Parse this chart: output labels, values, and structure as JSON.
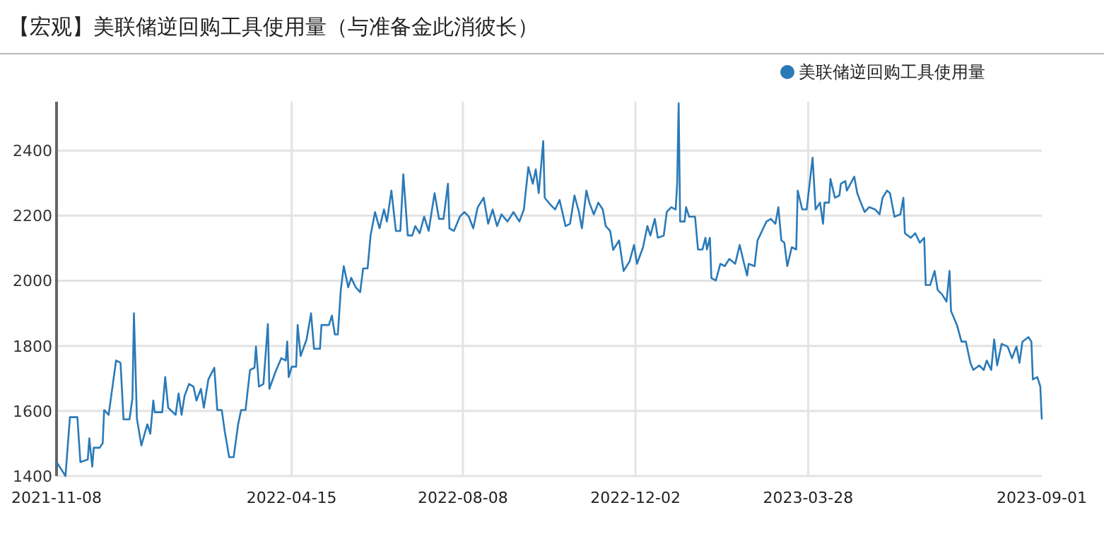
{
  "chart_data": {
    "type": "line",
    "title": "【宏观】美联储逆回购工具使用量（与准备金此消彼长）",
    "xlim": [
      "2021-11-08",
      "2023-09-01"
    ],
    "xticks": [
      "2021-11-08",
      "2022-04-15",
      "2022-08-08",
      "2022-12-02",
      "2023-03-28",
      "2023-09-01"
    ],
    "ylim": [
      1400,
      2550
    ],
    "yticks": [
      1400,
      1600,
      1800,
      2000,
      2200,
      2400
    ],
    "grid": true,
    "legend": "top right",
    "marker": "none",
    "line_style": "solid",
    "series": [
      {
        "name": "美联储逆回购工具使用量",
        "color": "#2a7ab8",
        "x": [
          "2021-11-08",
          "2021-11-11",
          "2021-11-14",
          "2021-11-17",
          "2021-11-22",
          "2021-11-24",
          "2021-11-29",
          "2021-11-30",
          "2021-12-02",
          "2021-12-03",
          "2021-12-07",
          "2021-12-09",
          "2021-12-10",
          "2021-12-13",
          "2021-12-18",
          "2021-12-21",
          "2021-12-23",
          "2021-12-27",
          "2021-12-29",
          "2021-12-30",
          "2022-01-01",
          "2022-01-04",
          "2022-01-08",
          "2022-01-10",
          "2022-01-12",
          "2022-01-13",
          "2022-01-18",
          "2022-01-20",
          "2022-01-22",
          "2022-01-27",
          "2022-01-29",
          "2022-01-31",
          "2022-02-02",
          "2022-02-05",
          "2022-02-08",
          "2022-02-10",
          "2022-02-13",
          "2022-02-15",
          "2022-02-18",
          "2022-02-22",
          "2022-02-24",
          "2022-02-27",
          "2022-03-01",
          "2022-03-04",
          "2022-03-07",
          "2022-03-10",
          "2022-03-12",
          "2022-03-15",
          "2022-03-18",
          "2022-03-21",
          "2022-03-22",
          "2022-03-24",
          "2022-03-27",
          "2022-03-30",
          "2022-03-31",
          "2022-04-04",
          "2022-04-08",
          "2022-04-11",
          "2022-04-12",
          "2022-04-13",
          "2022-04-15",
          "2022-04-18",
          "2022-04-19",
          "2022-04-21",
          "2022-04-25",
          "2022-04-28",
          "2022-04-30",
          "2022-05-04",
          "2022-05-05",
          "2022-05-10",
          "2022-05-12",
          "2022-05-14",
          "2022-05-16",
          "2022-05-18",
          "2022-05-20",
          "2022-05-23",
          "2022-05-25",
          "2022-05-28",
          "2022-05-31",
          "2022-06-02",
          "2022-06-05",
          "2022-06-07",
          "2022-06-10",
          "2022-06-13",
          "2022-06-16",
          "2022-06-18",
          "2022-06-21",
          "2022-06-24",
          "2022-06-27",
          "2022-06-29",
          "2022-07-02",
          "2022-07-05",
          "2022-07-07",
          "2022-07-10",
          "2022-07-13",
          "2022-07-16",
          "2022-07-20",
          "2022-07-23",
          "2022-07-26",
          "2022-07-29",
          "2022-07-30",
          "2022-08-02",
          "2022-08-06",
          "2022-08-09",
          "2022-08-12",
          "2022-08-15",
          "2022-08-18",
          "2022-08-22",
          "2022-08-25",
          "2022-08-28",
          "2022-08-31",
          "2022-09-03",
          "2022-09-07",
          "2022-09-11",
          "2022-09-15",
          "2022-09-18",
          "2022-09-21",
          "2022-09-24",
          "2022-09-26",
          "2022-09-28",
          "2022-10-01",
          "2022-10-02",
          "2022-10-06",
          "2022-10-09",
          "2022-10-12",
          "2022-10-16",
          "2022-10-19",
          "2022-10-22",
          "2022-10-25",
          "2022-10-27",
          "2022-10-30",
          "2022-11-01",
          "2022-11-04",
          "2022-11-07",
          "2022-11-10",
          "2022-11-12",
          "2022-11-15",
          "2022-11-17",
          "2022-11-21",
          "2022-11-24",
          "2022-11-28",
          "2022-12-01",
          "2022-12-03",
          "2022-12-07",
          "2022-12-10",
          "2022-12-12",
          "2022-12-15",
          "2022-12-17",
          "2022-12-21",
          "2022-12-23",
          "2022-12-26",
          "2022-12-29",
          "2022-12-30",
          "2022-12-31",
          "2023-01-01",
          "2023-01-04",
          "2023-01-05",
          "2023-01-07",
          "2023-01-11",
          "2023-01-13",
          "2023-01-16",
          "2023-01-18",
          "2023-01-19",
          "2023-01-21",
          "2023-01-22",
          "2023-01-25",
          "2023-01-28",
          "2023-01-31",
          "2023-02-03",
          "2023-02-07",
          "2023-02-10",
          "2023-02-13",
          "2023-02-15",
          "2023-02-16",
          "2023-02-20",
          "2023-02-22",
          "2023-02-25",
          "2023-02-28",
          "2023-03-03",
          "2023-03-06",
          "2023-03-08",
          "2023-03-10",
          "2023-03-12",
          "2023-03-14",
          "2023-03-17",
          "2023-03-20",
          "2023-03-21",
          "2023-03-24",
          "2023-03-27",
          "2023-03-31",
          "2023-04-02",
          "2023-04-05",
          "2023-04-07",
          "2023-04-08",
          "2023-04-11",
          "2023-04-12",
          "2023-04-15",
          "2023-04-18",
          "2023-04-19",
          "2023-04-22",
          "2023-04-23",
          "2023-04-28",
          "2023-04-30",
          "2023-05-03",
          "2023-05-05",
          "2023-05-08",
          "2023-05-12",
          "2023-05-15",
          "2023-05-17",
          "2023-05-20",
          "2023-05-22",
          "2023-05-25",
          "2023-05-29",
          "2023-05-31",
          "2023-06-01",
          "2023-06-05",
          "2023-06-08",
          "2023-06-11",
          "2023-06-14",
          "2023-06-15",
          "2023-06-18",
          "2023-06-21",
          "2023-06-23",
          "2023-06-26",
          "2023-06-29",
          "2023-07-01",
          "2023-07-02",
          "2023-07-06",
          "2023-07-09",
          "2023-07-12",
          "2023-07-15",
          "2023-07-17",
          "2023-07-21",
          "2023-07-24",
          "2023-07-26",
          "2023-07-29",
          "2023-07-31",
          "2023-08-02",
          "2023-08-05",
          "2023-08-09",
          "2023-08-12",
          "2023-08-15",
          "2023-08-17",
          "2023-08-19",
          "2023-08-23",
          "2023-08-25",
          "2023-08-26",
          "2023-08-29",
          "2023-08-31",
          "2023-09-01"
        ],
        "values": [
          1443,
          1422,
          1400,
          1581,
          1581,
          1443,
          1451,
          1516,
          1429,
          1487,
          1487,
          1501,
          1603,
          1588,
          1755,
          1748,
          1574,
          1574,
          1639,
          1900,
          1577,
          1494,
          1559,
          1530,
          1632,
          1596,
          1596,
          1704,
          1610,
          1588,
          1654,
          1588,
          1646,
          1683,
          1675,
          1632,
          1668,
          1610,
          1697,
          1733,
          1603,
          1603,
          1538,
          1458,
          1458,
          1559,
          1603,
          1603,
          1726,
          1733,
          1798,
          1675,
          1683,
          1867,
          1668,
          1719,
          1762,
          1755,
          1813,
          1704,
          1736,
          1736,
          1864,
          1769,
          1820,
          1900,
          1791,
          1791,
          1864,
          1864,
          1893,
          1835,
          1835,
          1972,
          2045,
          1980,
          2009,
          1980,
          1965,
          2038,
          2038,
          2139,
          2211,
          2161,
          2219,
          2182,
          2277,
          2153,
          2153,
          2327,
          2139,
          2139,
          2168,
          2146,
          2197,
          2153,
          2269,
          2190,
          2190,
          2298,
          2161,
          2153,
          2197,
          2211,
          2197,
          2161,
          2226,
          2255,
          2175,
          2219,
          2168,
          2204,
          2182,
          2211,
          2182,
          2219,
          2349,
          2298,
          2342,
          2269,
          2429,
          2255,
          2233,
          2219,
          2248,
          2168,
          2175,
          2262,
          2211,
          2161,
          2277,
          2240,
          2204,
          2240,
          2219,
          2168,
          2153,
          2095,
          2124,
          2030,
          2059,
          2110,
          2052,
          2102,
          2168,
          2139,
          2190,
          2132,
          2139,
          2211,
          2226,
          2219,
          2298,
          2545,
          2182,
          2182,
          2226,
          2197,
          2197,
          2096,
          2096,
          2132,
          2096,
          2132,
          2008,
          2001,
          2052,
          2045,
          2067,
          2052,
          2110,
          2052,
          2016,
          2052,
          2045,
          2124,
          2153,
          2182,
          2190,
          2175,
          2226,
          2124,
          2117,
          2045,
          2103,
          2096,
          2277,
          2219,
          2219,
          2378,
          2219,
          2240,
          2175,
          2240,
          2240,
          2313,
          2255,
          2262,
          2298,
          2306,
          2277,
          2320,
          2269,
          2233,
          2211,
          2226,
          2219,
          2204,
          2255,
          2277,
          2269,
          2197,
          2204,
          2255,
          2146,
          2132,
          2146,
          2117,
          2132,
          1987,
          1987,
          2030,
          1972,
          1958,
          1936,
          2030,
          1907,
          1864,
          1813,
          1813,
          1748,
          1726,
          1740,
          1726,
          1755,
          1726,
          1820,
          1740,
          1806,
          1798,
          1762,
          1798,
          1748,
          1813,
          1827,
          1813,
          1697,
          1704,
          1675,
          1574
        ]
      }
    ]
  }
}
